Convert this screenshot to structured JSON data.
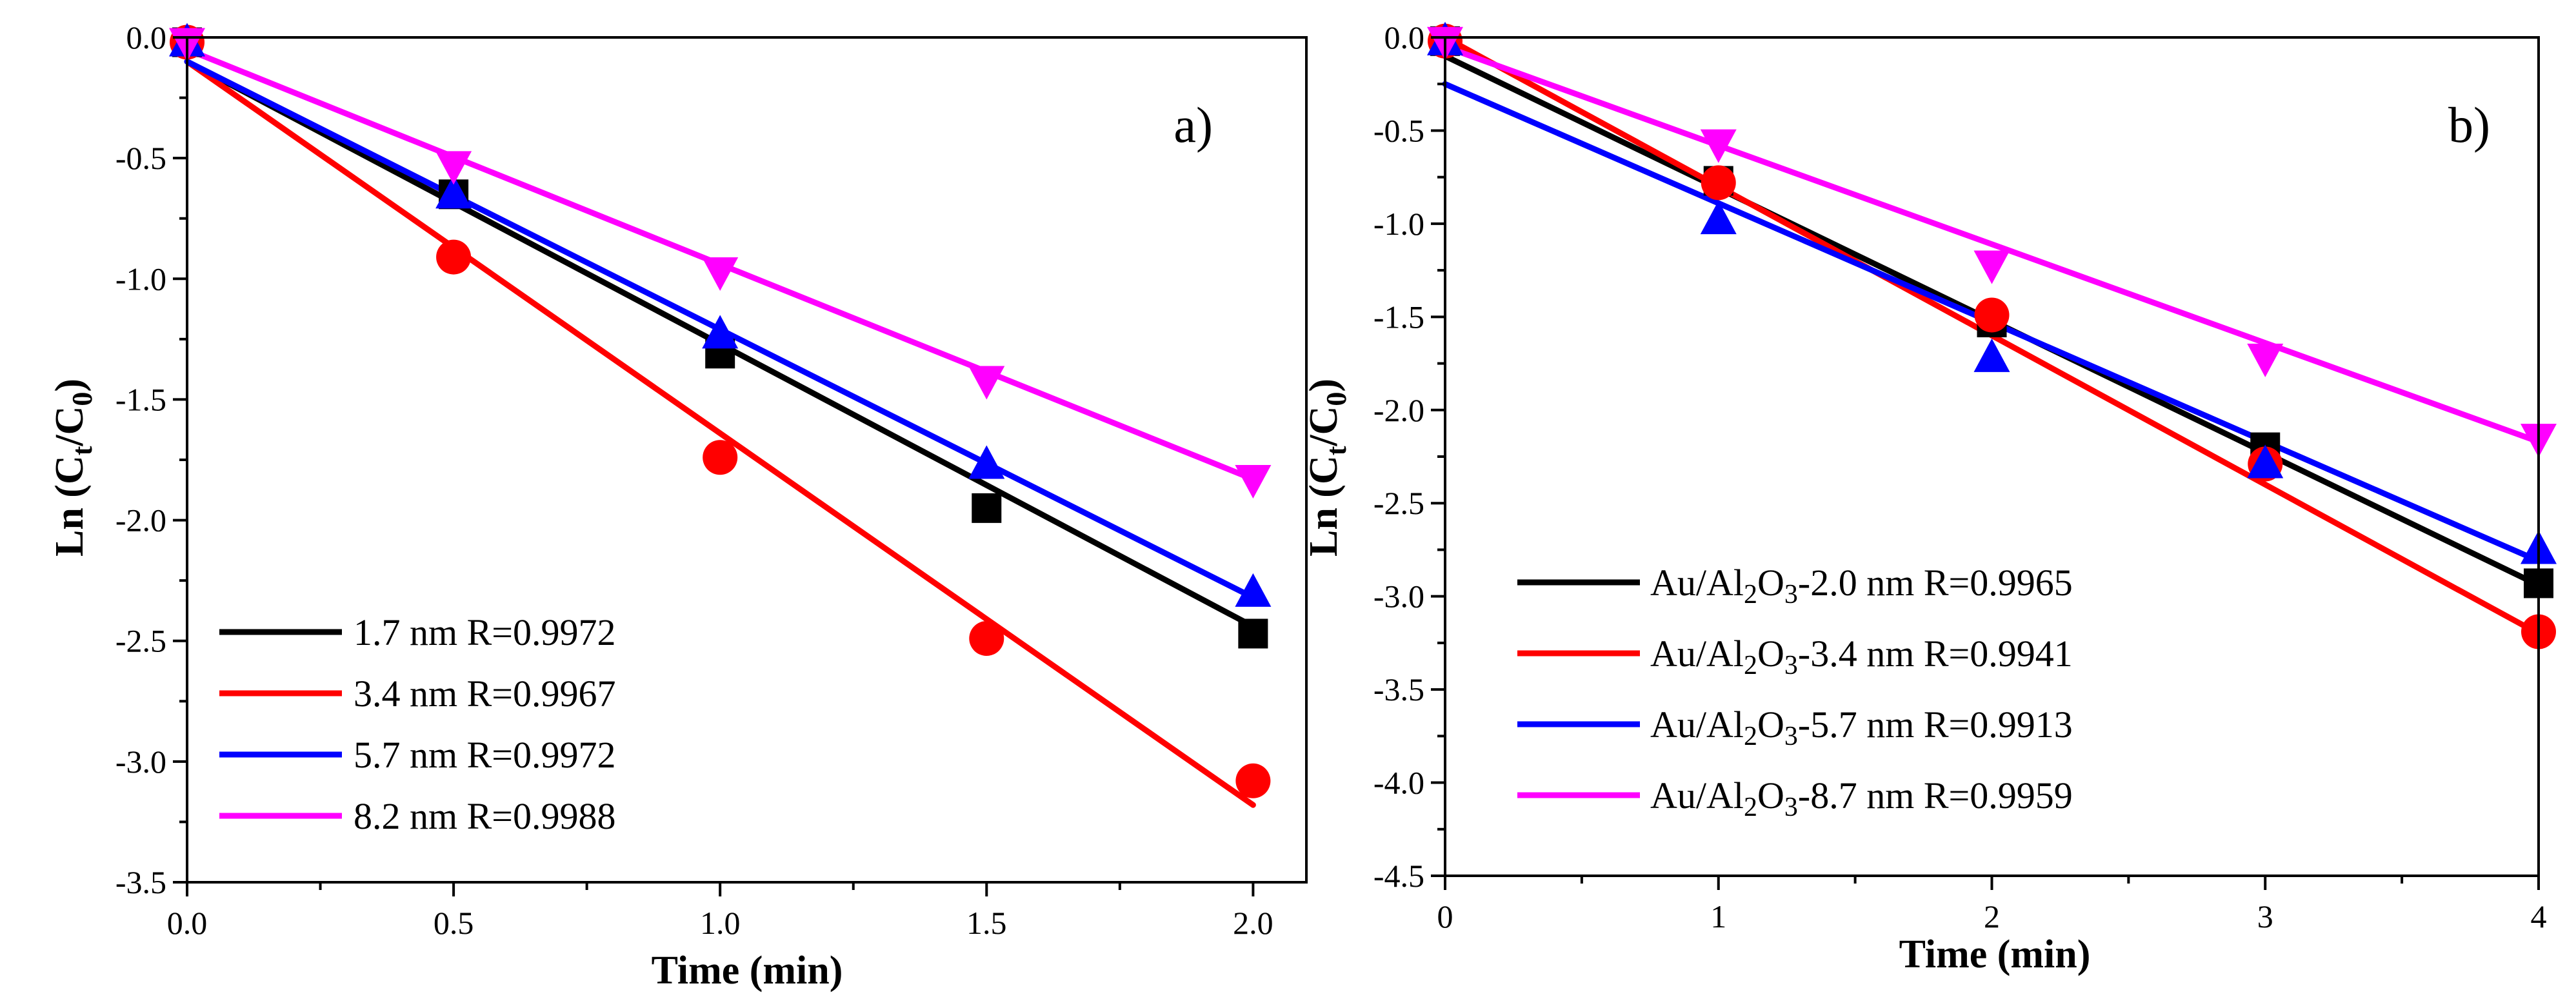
{
  "colors": {
    "black": "#000000",
    "red": "#ff0000",
    "blue": "#0000ff",
    "magenta": "#ff00ff"
  },
  "chart_data": [
    {
      "type": "scatter",
      "panel_label": "a)",
      "xlabel": "Time (min)",
      "ylabel": "Ln (Ct/C0)",
      "xlim": [
        0,
        2.1
      ],
      "ylim": [
        -3.5,
        0
      ],
      "xticks": [
        0,
        0.5,
        1,
        1.5,
        2
      ],
      "xtick_labels": [
        "0.0",
        "0.5",
        "1.0",
        "1.5",
        "2.0"
      ],
      "yticks": [
        0,
        -0.5,
        -1,
        -1.5,
        -2,
        -2.5,
        -3,
        -3.5
      ],
      "ytick_labels": [
        "0.0",
        "-0.5",
        "-1.0",
        "-1.5",
        "-2.0",
        "-2.5",
        "-3.0",
        "-3.5"
      ],
      "legend_position": "bottom-left",
      "series": [
        {
          "name": "1.7 nm R=0.9972",
          "color": "#000000",
          "marker": "square",
          "x": [
            0,
            0.5,
            1,
            1.5,
            2
          ],
          "y": [
            -0.02,
            -0.65,
            -1.31,
            -1.95,
            -2.47
          ],
          "fit": {
            "slope": -1.17,
            "intercept": -0.1
          }
        },
        {
          "name": "3.4 nm R=0.9967",
          "color": "#ff0000",
          "marker": "circle",
          "x": [
            0,
            0.5,
            1,
            1.5,
            2
          ],
          "y": [
            -0.02,
            -0.91,
            -1.74,
            -2.49,
            -3.08
          ],
          "fit": {
            "slope": -1.54,
            "intercept": -0.1
          }
        },
        {
          "name": "5.7 nm R=0.9972",
          "color": "#0000ff",
          "marker": "triangle-up",
          "x": [
            0,
            0.5,
            1,
            1.5,
            2
          ],
          "y": [
            -0.02,
            -0.65,
            -1.23,
            -1.77,
            -2.3
          ],
          "fit": {
            "slope": -1.11,
            "intercept": -0.1
          }
        },
        {
          "name": "8.2 nm R=0.9988",
          "color": "#ff00ff",
          "marker": "triangle-down",
          "x": [
            0,
            0.5,
            1,
            1.5,
            2
          ],
          "y": [
            -0.02,
            -0.53,
            -0.97,
            -1.42,
            -1.83
          ],
          "fit": {
            "slope": -0.89,
            "intercept": -0.05
          }
        }
      ]
    },
    {
      "type": "scatter",
      "panel_label": "b)",
      "xlabel": "Time (min)",
      "ylabel": "Ln (Ct/C0)",
      "xlim": [
        0,
        4
      ],
      "ylim": [
        -4.5,
        0
      ],
      "xticks": [
        0,
        1,
        2,
        3,
        4
      ],
      "xtick_labels": [
        "0",
        "1",
        "2",
        "3",
        "4"
      ],
      "yticks": [
        0,
        -0.5,
        -1,
        -1.5,
        -2,
        -2.5,
        -3,
        -3.5,
        -4,
        -4.5
      ],
      "ytick_labels": [
        "0.0",
        "-0.5",
        "-1.0",
        "-1.5",
        "-2.0",
        "-2.5",
        "-3.0",
        "-3.5",
        "-4.0",
        "-4.5"
      ],
      "legend_position": "bottom-left",
      "series": [
        {
          "name": "Au/Al2O3-2.0 nm R=0.9965",
          "color": "#000000",
          "marker": "square",
          "x": [
            0,
            1,
            2,
            3,
            4
          ],
          "y": [
            -0.02,
            -0.77,
            -1.53,
            -2.2,
            -2.93
          ],
          "fit": {
            "slope": -0.71,
            "intercept": -0.1
          }
        },
        {
          "name": "Au/Al2O3-3.4 nm R=0.9941",
          "color": "#ff0000",
          "marker": "circle",
          "x": [
            0,
            1,
            2,
            3,
            4
          ],
          "y": [
            -0.02,
            -0.78,
            -1.49,
            -2.29,
            -3.19
          ],
          "fit": {
            "slope": -0.8,
            "intercept": 0.0
          }
        },
        {
          "name": "Au/Al2O3-5.7 nm R=0.9913",
          "color": "#0000ff",
          "marker": "triangle-up",
          "x": [
            0,
            1,
            2,
            3,
            4
          ],
          "y": [
            -0.02,
            -0.98,
            -1.72,
            -2.29,
            -2.75
          ],
          "fit": {
            "slope": -0.64,
            "intercept": -0.25
          }
        },
        {
          "name": "Au/Al2O3-8.7 nm R=0.9959",
          "color": "#ff00ff",
          "marker": "triangle-down",
          "x": [
            0,
            1,
            2,
            3,
            4
          ],
          "y": [
            -0.02,
            -0.57,
            -1.22,
            -1.72,
            -2.15
          ],
          "fit": {
            "slope": -0.53,
            "intercept": -0.05
          }
        }
      ]
    }
  ]
}
